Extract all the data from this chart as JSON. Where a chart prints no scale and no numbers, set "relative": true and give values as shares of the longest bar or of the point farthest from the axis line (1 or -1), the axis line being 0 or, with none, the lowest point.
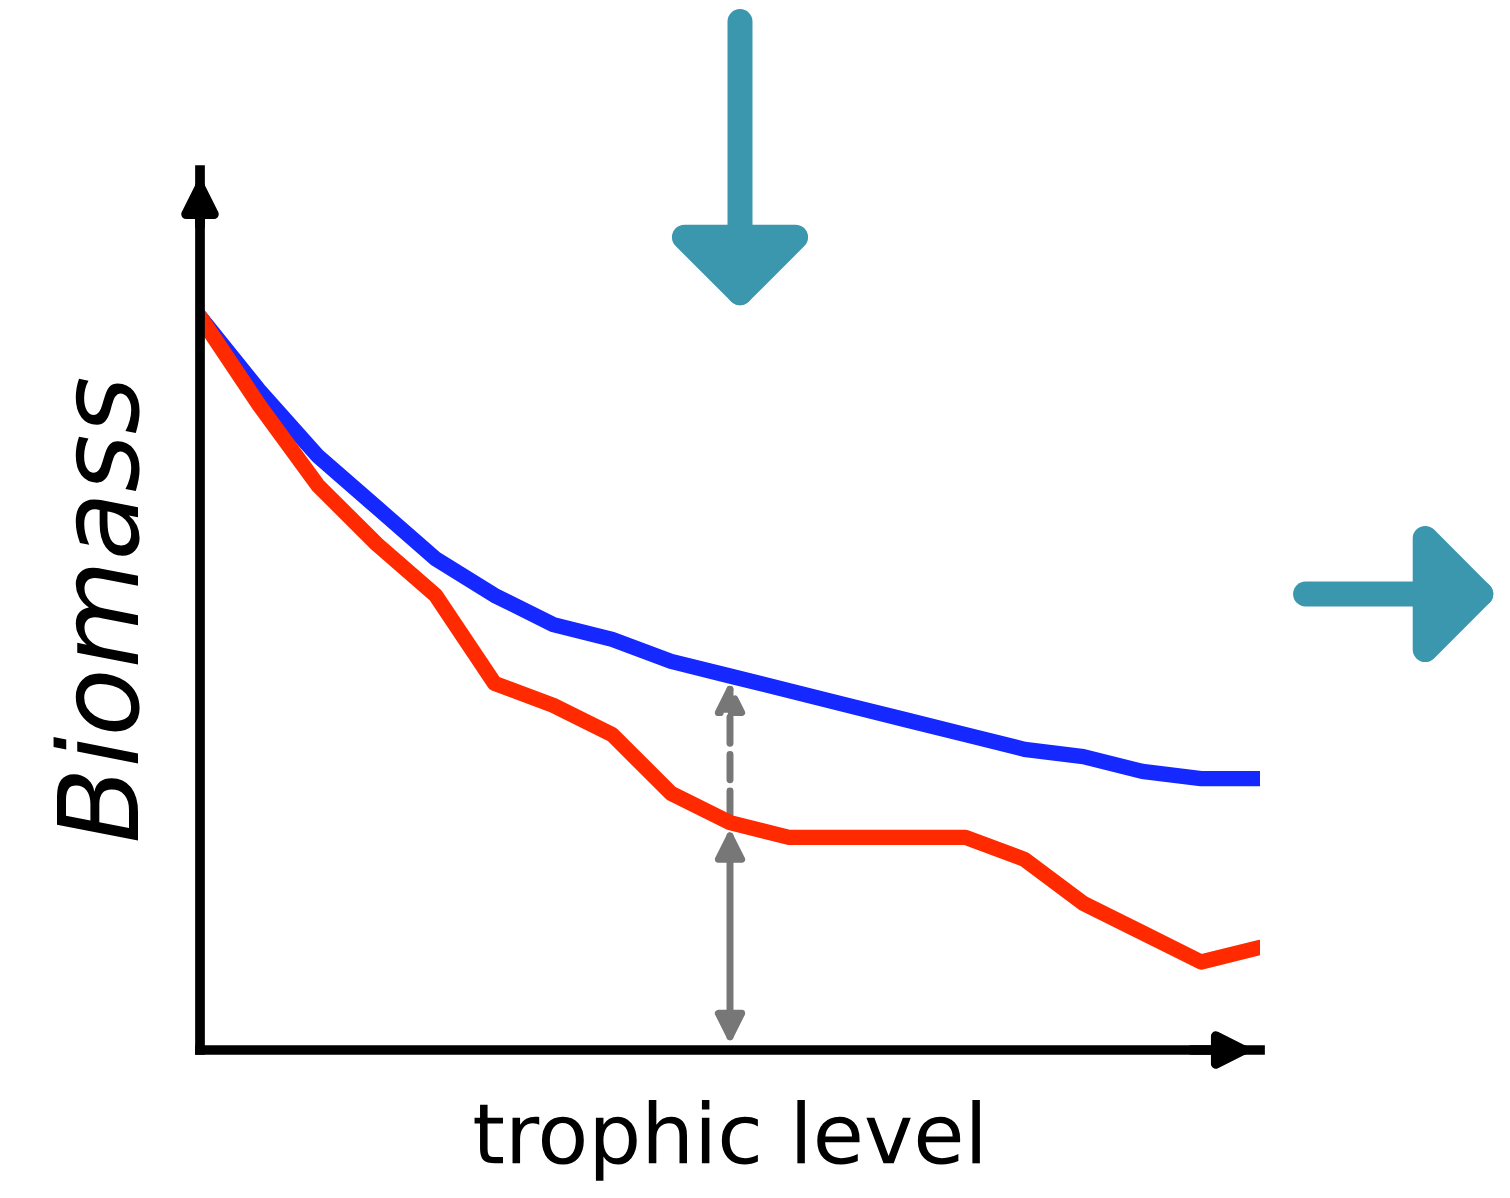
{
  "chart_data": {
    "type": "line",
    "relative": true,
    "xlabel": "trophic level",
    "ylabel": "Biomass",
    "grid": false,
    "legend": false,
    "marker": "none",
    "line_style": "solid",
    "tick_labels": false,
    "categories": [
      null,
      null,
      null,
      null,
      null,
      null,
      null,
      null,
      null,
      null,
      null,
      null,
      null,
      null,
      null,
      null,
      null,
      null,
      null
    ],
    "series": [
      {
        "color": "#1428ff",
        "values": [
          1.0,
          0.9,
          0.81,
          0.74,
          0.67,
          0.62,
          0.58,
          0.56,
          0.53,
          0.51,
          0.49,
          0.47,
          0.45,
          0.43,
          0.41,
          0.4,
          0.38,
          0.37,
          0.37
        ]
      },
      {
        "color": "#ff2a00",
        "values": [
          1.0,
          0.88,
          0.77,
          0.69,
          0.62,
          0.5,
          0.47,
          0.43,
          0.35,
          0.31,
          0.29,
          0.29,
          0.29,
          0.29,
          0.26,
          0.2,
          0.16,
          0.12,
          0.14
        ]
      }
    ]
  }
}
